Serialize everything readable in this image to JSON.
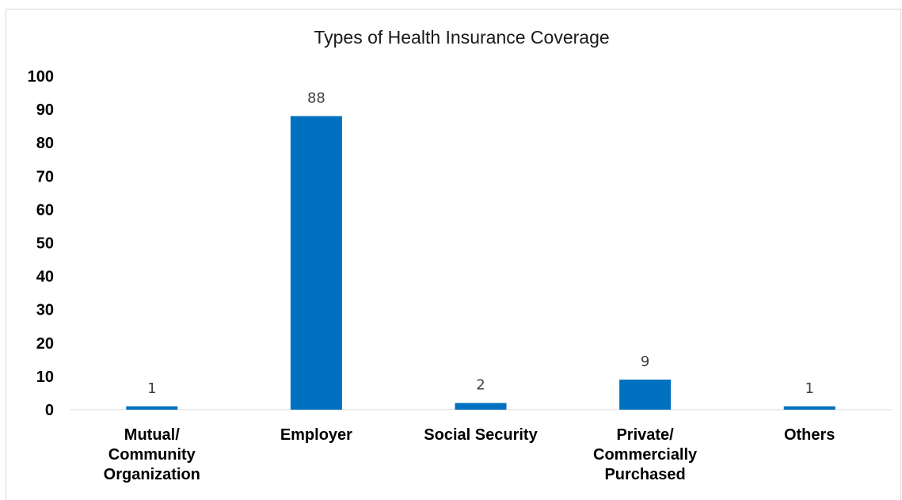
{
  "chart_data": {
    "type": "bar",
    "title": "Types of Health Insurance Coverage",
    "xlabel": "",
    "ylabel": "",
    "categories": [
      "Mutual/ Community Organization",
      "Employer",
      "Social Security",
      "Private/ Commercially Purchased",
      "Others"
    ],
    "category_label_lines": [
      [
        "Mutual/",
        "Community",
        "Organization"
      ],
      [
        "Employer"
      ],
      [
        "Social Security"
      ],
      [
        "Private/",
        "Commercially",
        "Purchased"
      ],
      [
        "Others"
      ]
    ],
    "values": [
      1,
      88,
      2,
      9,
      1
    ],
    "data_labels": [
      "1",
      "88",
      "2",
      "9",
      "1"
    ],
    "ylim": [
      0,
      100
    ],
    "yticks": [
      "0",
      "10",
      "20",
      "30",
      "40",
      "50",
      "60",
      "70",
      "80",
      "90",
      "100"
    ],
    "grid": false,
    "legend": "none",
    "bar_color": "#0070c0"
  }
}
